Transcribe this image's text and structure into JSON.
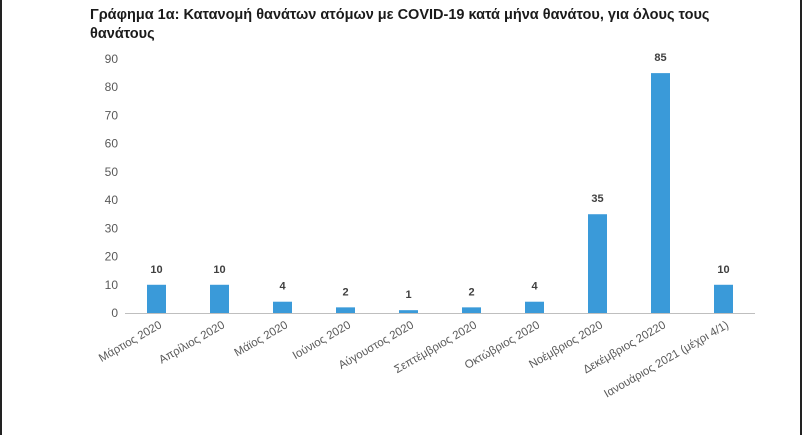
{
  "chart_data": {
    "type": "bar",
    "title": "Γράφημα 1α: Κατανομή θανάτων ατόμων με COVID-19 κατά μήνα θανάτου, για όλους τους θανάτους",
    "categories": [
      "Μάρτιος 2020",
      "Απρίλιος 2020",
      "Μάϊος 2020",
      "Ιούνιος 2020",
      "Αύγουστος 2020",
      "Σεπτέμβριος 2020",
      "Οκτώβριος 2020",
      "Νοέμβριος 2020",
      "Δεκέμβριος 20220",
      "Ιανουάριος 2021 (μέχρι 4/1)"
    ],
    "values": [
      10,
      10,
      4,
      2,
      1,
      2,
      4,
      35,
      85,
      10
    ],
    "yticks": [
      0,
      10,
      20,
      30,
      40,
      50,
      60,
      70,
      80,
      90
    ],
    "ylim": [
      0,
      90
    ],
    "grid": false,
    "bar_color": "#3a9ad9",
    "xlabel": "",
    "ylabel": ""
  }
}
